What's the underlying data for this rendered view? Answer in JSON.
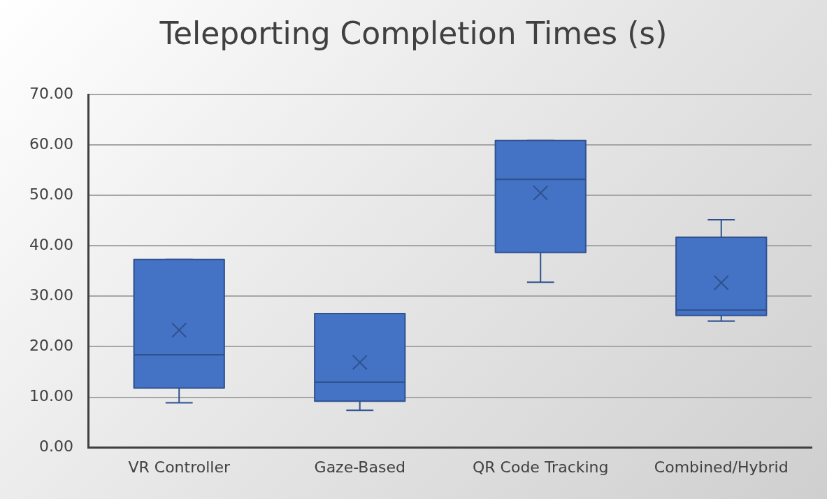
{
  "chart_data": {
    "type": "box",
    "title": "Teleporting Completion Times (s)",
    "categories": [
      "VR Controller",
      "Gaze-Based",
      "QR Code Tracking",
      "Combined/Hybrid"
    ],
    "color": "#4472c4",
    "boxes": [
      {
        "low": 8.9,
        "q1": 11.8,
        "median": 18.4,
        "q3": 37.3,
        "high": 37.3,
        "mean": 23.3
      },
      {
        "low": 7.4,
        "q1": 9.2,
        "median": 13.0,
        "q3": 26.6,
        "high": 26.6,
        "mean": 16.9
      },
      {
        "low": 32.8,
        "q1": 38.7,
        "median": 53.2,
        "q3": 60.9,
        "high": 60.9,
        "mean": 50.5
      },
      {
        "low": 25.1,
        "q1": 26.2,
        "median": 27.3,
        "q3": 41.7,
        "high": 45.2,
        "mean": 32.7
      }
    ],
    "ylim": [
      0,
      70
    ],
    "yticks": [
      {
        "value": 0,
        "label": "0.00"
      },
      {
        "value": 10,
        "label": "10.00"
      },
      {
        "value": 20,
        "label": "20.00"
      },
      {
        "value": 30,
        "label": "30.00"
      },
      {
        "value": 40,
        "label": "40.00"
      },
      {
        "value": 50,
        "label": "50.00"
      },
      {
        "value": 60,
        "label": "60.00"
      },
      {
        "value": 70,
        "label": "70.00"
      }
    ],
    "grid": "y",
    "legend": false
  }
}
